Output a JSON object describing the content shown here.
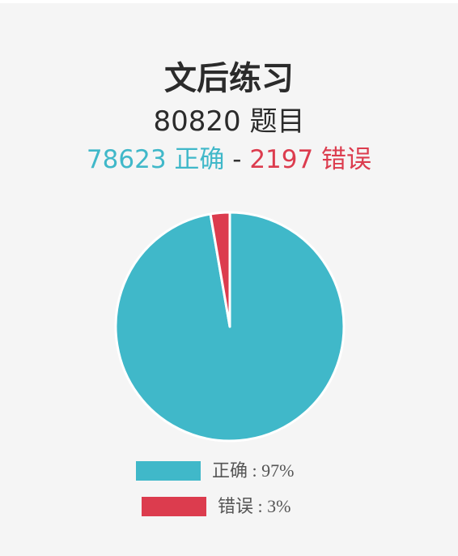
{
  "header": {
    "title": "文后练习",
    "total_label": "80820 题目",
    "correct_label": "78623 正确",
    "separator": "-",
    "wrong_label": "2197 错误"
  },
  "chart_data": {
    "type": "pie",
    "categories": [
      "正确",
      "错误"
    ],
    "values": [
      78623,
      2197
    ],
    "colors": [
      "#40b8c9",
      "#dc3c4e"
    ],
    "legend": [
      {
        "label": "正确 : 97%",
        "color": "#40b8c9"
      },
      {
        "label": "错误 : 3%",
        "color": "#dc3c4e"
      }
    ],
    "legend_placement": "bottom"
  }
}
